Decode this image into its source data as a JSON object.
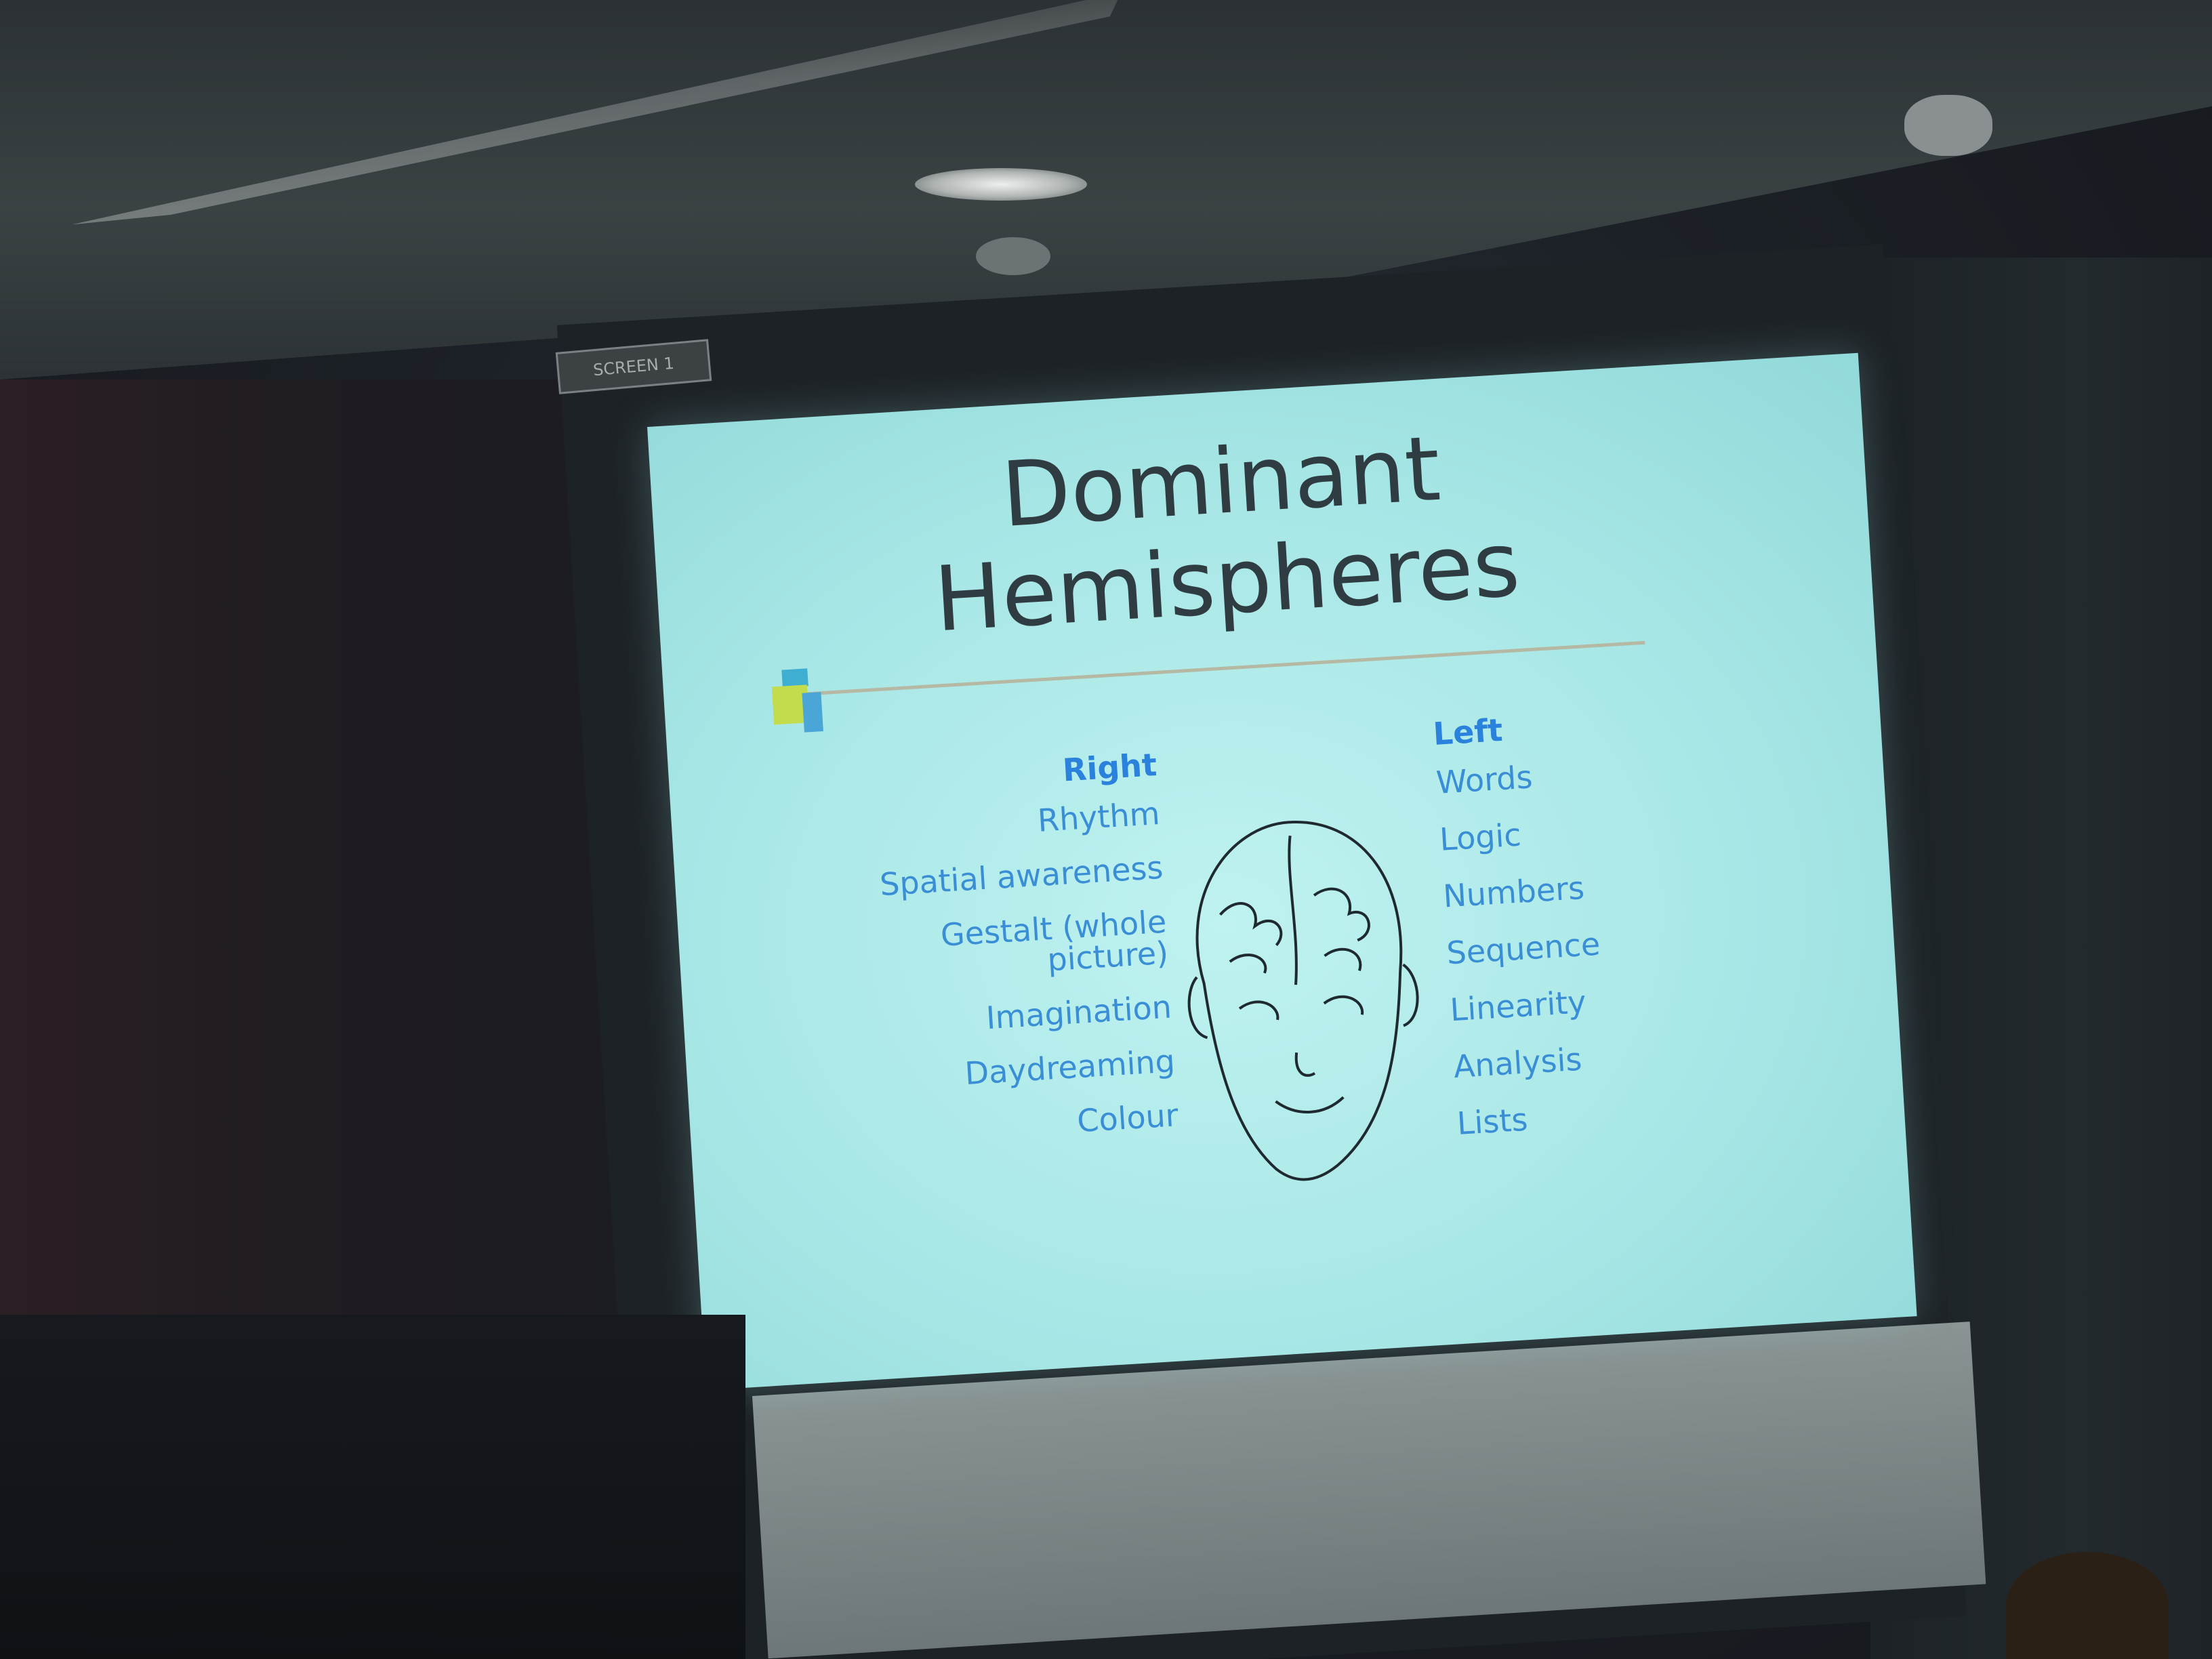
{
  "room": {
    "screen_label": "SCREEN 1"
  },
  "slide": {
    "title_line1": "Dominant",
    "title_line2": "Hemispheres",
    "right_column": {
      "header": "Right",
      "items": [
        "Rhythm",
        "Spatial awareness",
        "Gestalt (whole picture)",
        "Imagination",
        "Daydreaming",
        "Colour"
      ]
    },
    "left_column": {
      "header": "Left",
      "items": [
        "Words",
        "Logic",
        "Numbers",
        "Sequence",
        "Linearity",
        "Analysis",
        "Lists"
      ]
    },
    "colors": {
      "slide_background": "#a8e7e6",
      "title_text": "#2f3d42",
      "list_text": "#3a8ed6"
    },
    "illustration": "head-with-brain-icon"
  }
}
